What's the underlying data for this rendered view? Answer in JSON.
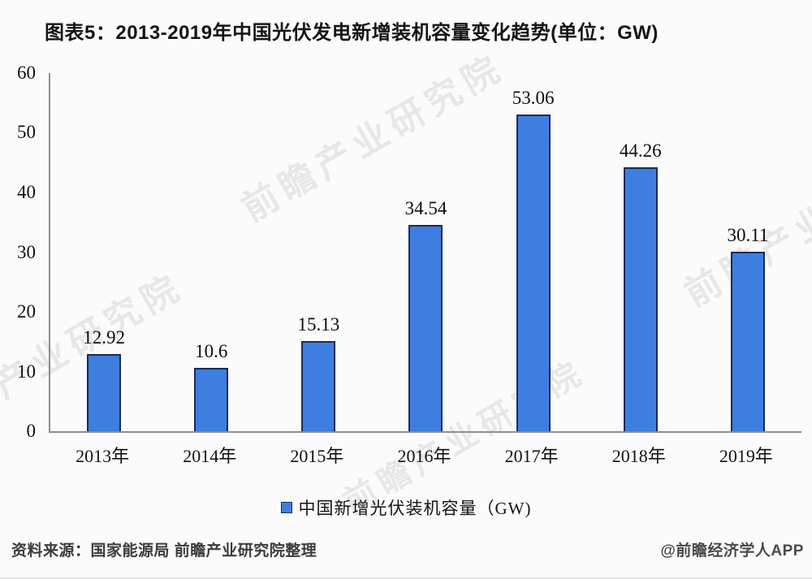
{
  "title": "图表5：2013-2019年中国光伏发电新增装机容量变化趋势(单位：GW)",
  "chart_data": {
    "type": "bar",
    "title": "图表5：2013-2019年中国光伏发电新增装机容量变化趋势(单位：GW)",
    "categories": [
      "2013年",
      "2014年",
      "2015年",
      "2016年",
      "2017年",
      "2018年",
      "2019年"
    ],
    "values": [
      12.92,
      10.6,
      15.13,
      34.54,
      53.06,
      44.26,
      30.11
    ],
    "value_labels": [
      "12.92",
      "10.6",
      "15.13",
      "34.54",
      "53.06",
      "44.26",
      "30.11"
    ],
    "series_name": "中国新增光伏装机容量（GW)",
    "xlabel": "",
    "ylabel": "",
    "ylim": [
      0,
      60
    ],
    "ytick_step": 10,
    "grid": false,
    "legend_position": "bottom",
    "bar_color": "#3e7ee0",
    "bar_border_color": "#1a2c52"
  },
  "legend": {
    "label": "中国新增光伏装机容量（GW)"
  },
  "footer": {
    "source": "资料来源：国家能源局 前瞻产业研究院整理",
    "credit": "@前瞻经济学人APP"
  },
  "watermark": {
    "text": "前瞻产业研究院"
  }
}
